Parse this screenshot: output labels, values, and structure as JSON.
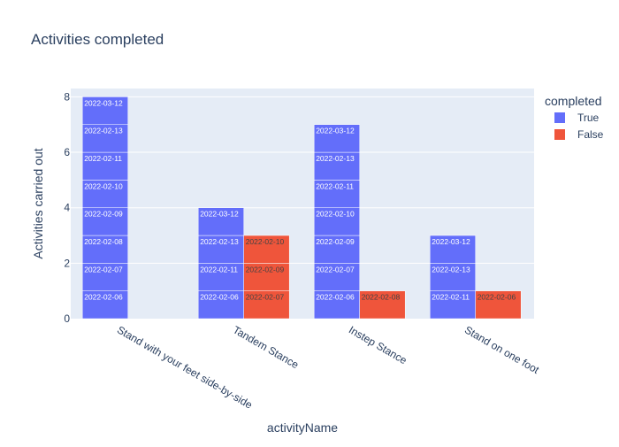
{
  "chart_data": {
    "type": "bar",
    "barmode": "group-stacked",
    "title": "Activities completed",
    "xlabel": "activityName",
    "ylabel": "Activities carried out",
    "ylim": [
      0,
      8.3
    ],
    "yticks": [
      0,
      2,
      4,
      6,
      8
    ],
    "grid": true,
    "legend_title": "completed",
    "legend_position": "top-right",
    "categories": [
      "Stand with your feet side-by-side",
      "Tandem Stance",
      "Instep Stance",
      "Stand on one foot"
    ],
    "series": [
      {
        "name": "True",
        "color": "#636efa",
        "label_color": "#ffffff",
        "stacks": [
          [
            "2022-02-06",
            "2022-02-07",
            "2022-02-08",
            "2022-02-09",
            "2022-02-10",
            "2022-02-11",
            "2022-02-13",
            "2022-03-12"
          ],
          [
            "2022-02-06",
            "2022-02-11",
            "2022-02-13",
            "2022-03-12"
          ],
          [
            "2022-02-06",
            "2022-02-07",
            "2022-02-09",
            "2022-02-10",
            "2022-02-11",
            "2022-02-13",
            "2022-03-12"
          ],
          [
            "2022-02-11",
            "2022-02-13",
            "2022-03-12"
          ]
        ],
        "values": [
          8,
          4,
          7,
          3
        ]
      },
      {
        "name": "False",
        "color": "#ef553b",
        "label_color": "#444444",
        "stacks": [
          [],
          [
            "2022-02-07",
            "2022-02-09",
            "2022-02-10"
          ],
          [
            "2022-02-08"
          ],
          [
            "2022-02-06"
          ]
        ],
        "values": [
          0,
          3,
          1,
          1
        ]
      }
    ]
  }
}
